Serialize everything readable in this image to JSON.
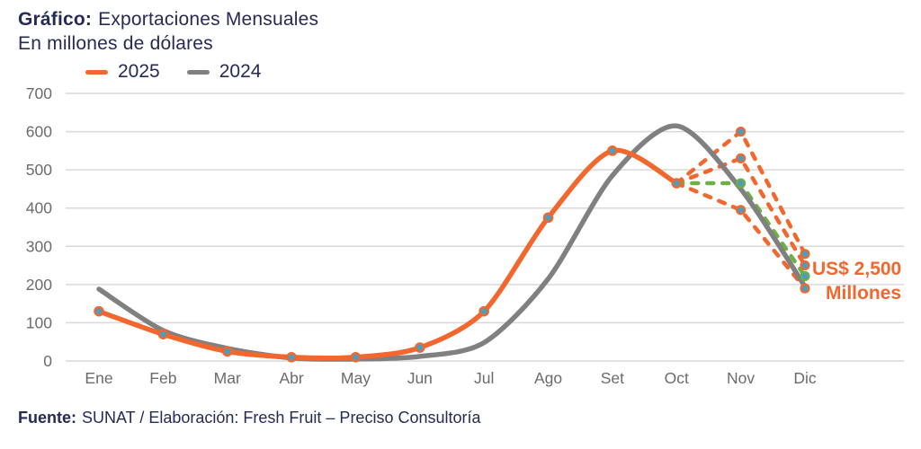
{
  "title": {
    "prefix": "Gráfico:",
    "rest": "Exportaciones Mensuales",
    "subtitle": "En millones de dólares"
  },
  "legend": [
    {
      "label": "2025",
      "color": "#F2672E"
    },
    {
      "label": "2024",
      "color": "#808080"
    }
  ],
  "footer": {
    "prefix": "Fuente:",
    "rest": "SUNAT / Elaboración: Fresh Fruit – Preciso Consultoría"
  },
  "colors": {
    "navy": "#242B54",
    "axis_gray": "#6B6B6B",
    "grid": "#D9D9D9",
    "accent": "#F2672E",
    "background": "#FFFFFF",
    "marker_fill": "#4D9DBB"
  },
  "chart_data": {
    "type": "line",
    "title": "Gráfico: Exportaciones Mensuales",
    "subtitle": "En millones de dólares",
    "categories": [
      "Ene",
      "Feb",
      "Mar",
      "Abr",
      "May",
      "Jun",
      "Jul",
      "Ago",
      "Set",
      "Oct",
      "Nov",
      "Dic"
    ],
    "ylim": [
      0,
      700
    ],
    "ytick_step": 100,
    "grid": true,
    "legend_position": "top-left",
    "series": [
      {
        "name": "2025",
        "color": "#F2672E",
        "line": "solid",
        "markers": true,
        "values": [
          130,
          70,
          25,
          10,
          10,
          35,
          130,
          375,
          550,
          465,
          null,
          null
        ]
      },
      {
        "name": "2024",
        "color": "#808080",
        "line": "solid",
        "markers": false,
        "values": [
          188,
          80,
          33,
          8,
          5,
          12,
          48,
          215,
          485,
          615,
          450,
          195
        ]
      }
    ],
    "projections": [
      {
        "name": "escenario-alto",
        "color": "#F2672E",
        "line": "dashed",
        "start_index": 9,
        "values": [
          465,
          600,
          280
        ]
      },
      {
        "name": "escenario-medio",
        "color": "#F2672E",
        "line": "dashed",
        "start_index": 9,
        "values": [
          465,
          530,
          250
        ]
      },
      {
        "name": "escenario-base-2500",
        "color": "#6FB043",
        "line": "dashed",
        "start_index": 9,
        "values": [
          465,
          465,
          222
        ]
      },
      {
        "name": "escenario-bajo",
        "color": "#F2672E",
        "line": "dashed",
        "start_index": 9,
        "values": [
          465,
          395,
          190
        ]
      }
    ],
    "annotation": {
      "text_line1": "US$ 2,500",
      "text_line2": "Millones",
      "color": "#F2672E"
    }
  }
}
